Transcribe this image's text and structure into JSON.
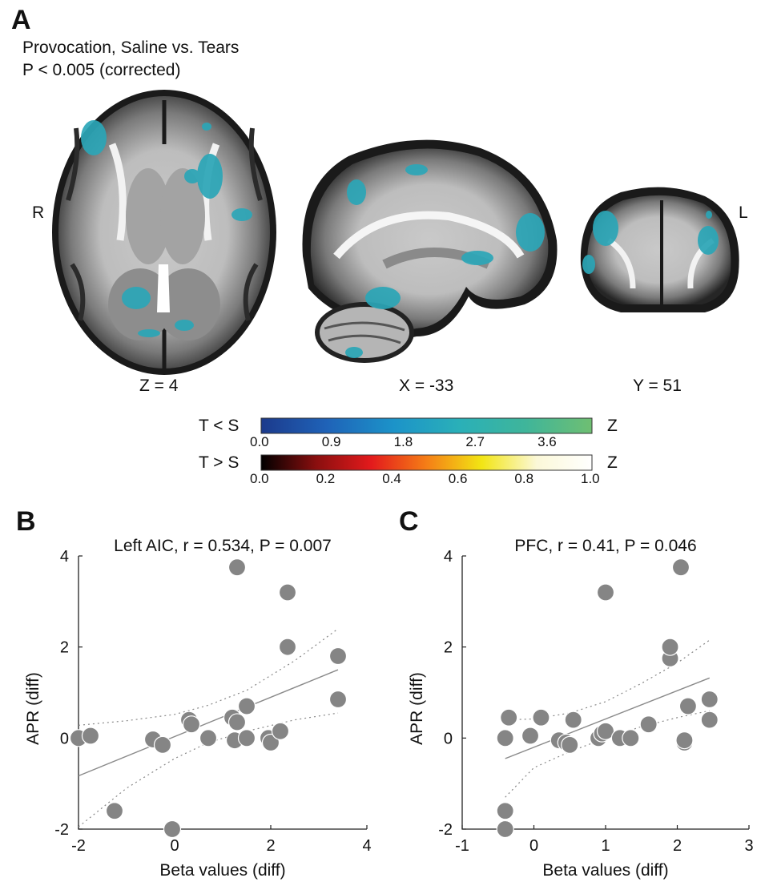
{
  "panel_a": {
    "letter": "A",
    "title_line1": "Provocation, Saline vs. Tears",
    "title_line2": "P < 0.005 (corrected)",
    "orientation_right": "R",
    "orientation_left": "L",
    "slice_labels": [
      "Z = 4",
      "X = -33",
      "Y = 51"
    ],
    "colorbars": [
      {
        "label": "T < S",
        "unit": "Z",
        "ticks": [
          "0.0",
          "0.9",
          "1.8",
          "2.7",
          "3.6"
        ],
        "colors": [
          "#1c3a8c",
          "#1f63b8",
          "#1c93c9",
          "#2ab0b8",
          "#3fb59a",
          "#6fbf72"
        ]
      },
      {
        "label": "T > S",
        "unit": "Z",
        "ticks": [
          "0.0",
          "0.2",
          "0.4",
          "0.6",
          "0.8",
          "1.0"
        ],
        "colors": [
          "#000000",
          "#8a0f0f",
          "#e31a1c",
          "#f57e16",
          "#f2e514",
          "#fbf8d8",
          "#ffffff"
        ]
      }
    ]
  },
  "chart_data": [
    {
      "type": "scatter",
      "panel": "B",
      "title": "Left AIC, r = 0.534, P = 0.007",
      "xlabel": "Beta values (diff)",
      "ylabel": "APR (diff)",
      "xlim": [
        -2,
        4
      ],
      "ylim": [
        -2,
        4
      ],
      "xticks": [
        "-2",
        "0",
        "2",
        "4"
      ],
      "yticks": [
        "-2",
        "0",
        "2",
        "4"
      ],
      "points": [
        [
          -2.0,
          0.0
        ],
        [
          -1.75,
          0.05
        ],
        [
          -1.25,
          -1.6
        ],
        [
          -0.45,
          -0.03
        ],
        [
          -0.25,
          -0.15
        ],
        [
          -0.05,
          -2.0
        ],
        [
          0.3,
          0.4
        ],
        [
          0.35,
          0.3
        ],
        [
          0.7,
          0.0
        ],
        [
          1.2,
          0.45
        ],
        [
          1.25,
          -0.05
        ],
        [
          1.3,
          0.35
        ],
        [
          1.3,
          3.75
        ],
        [
          1.5,
          0.0
        ],
        [
          1.5,
          0.7
        ],
        [
          1.95,
          0.0
        ],
        [
          2.0,
          -0.1
        ],
        [
          2.2,
          0.15
        ],
        [
          2.35,
          3.2
        ],
        [
          2.35,
          2.0
        ],
        [
          3.4,
          1.8
        ],
        [
          3.4,
          0.85
        ]
      ],
      "fit": [
        [
          -2.0,
          -0.83
        ],
        [
          3.4,
          1.5
        ]
      ],
      "ci_upper": [
        [
          -2.0,
          0.28
        ],
        [
          -1.0,
          0.38
        ],
        [
          0.0,
          0.52
        ],
        [
          0.7,
          0.72
        ],
        [
          1.5,
          1.05
        ],
        [
          2.5,
          1.7
        ],
        [
          3.4,
          2.4
        ]
      ],
      "ci_lower": [
        [
          -2.0,
          -1.95
        ],
        [
          -1.0,
          -1.1
        ],
        [
          0.0,
          -0.45
        ],
        [
          0.7,
          -0.1
        ],
        [
          1.5,
          0.15
        ],
        [
          2.5,
          0.4
        ],
        [
          3.4,
          0.55
        ]
      ]
    },
    {
      "type": "scatter",
      "panel": "C",
      "title": "PFC, r = 0.41, P = 0.046",
      "xlabel": "Beta values (diff)",
      "ylabel": "APR (diff)",
      "xlim": [
        -1,
        3
      ],
      "ylim": [
        -2,
        4
      ],
      "xticks": [
        "-1",
        "0",
        "1",
        "2",
        "3"
      ],
      "yticks": [
        "-2",
        "0",
        "2",
        "4"
      ],
      "points": [
        [
          -0.4,
          0.0
        ],
        [
          -0.35,
          0.45
        ],
        [
          -0.4,
          -1.6
        ],
        [
          -0.4,
          -2.0
        ],
        [
          -0.05,
          0.05
        ],
        [
          0.1,
          0.45
        ],
        [
          0.35,
          -0.05
        ],
        [
          0.45,
          -0.1
        ],
        [
          0.5,
          -0.15
        ],
        [
          0.55,
          0.4
        ],
        [
          0.9,
          0.0
        ],
        [
          0.95,
          0.1
        ],
        [
          1.0,
          3.2
        ],
        [
          1.0,
          0.15
        ],
        [
          1.2,
          0.0
        ],
        [
          1.35,
          0.0
        ],
        [
          1.6,
          0.3
        ],
        [
          1.9,
          1.75
        ],
        [
          1.9,
          2.0
        ],
        [
          2.05,
          3.75
        ],
        [
          2.1,
          -0.1
        ],
        [
          2.1,
          -0.05
        ],
        [
          2.15,
          0.7
        ],
        [
          2.45,
          0.85
        ],
        [
          2.45,
          0.4
        ]
      ],
      "fit": [
        [
          -0.4,
          -0.45
        ],
        [
          2.45,
          1.32
        ]
      ],
      "ci_upper": [
        [
          -0.4,
          0.4
        ],
        [
          0.0,
          0.42
        ],
        [
          0.5,
          0.55
        ],
        [
          1.0,
          0.8
        ],
        [
          1.5,
          1.2
        ],
        [
          2.0,
          1.65
        ],
        [
          2.45,
          2.15
        ]
      ],
      "ci_lower": [
        [
          -0.4,
          -1.3
        ],
        [
          0.0,
          -0.65
        ],
        [
          0.5,
          -0.3
        ],
        [
          1.0,
          0.0
        ],
        [
          1.5,
          0.25
        ],
        [
          2.0,
          0.45
        ],
        [
          2.45,
          0.6
        ]
      ]
    }
  ]
}
